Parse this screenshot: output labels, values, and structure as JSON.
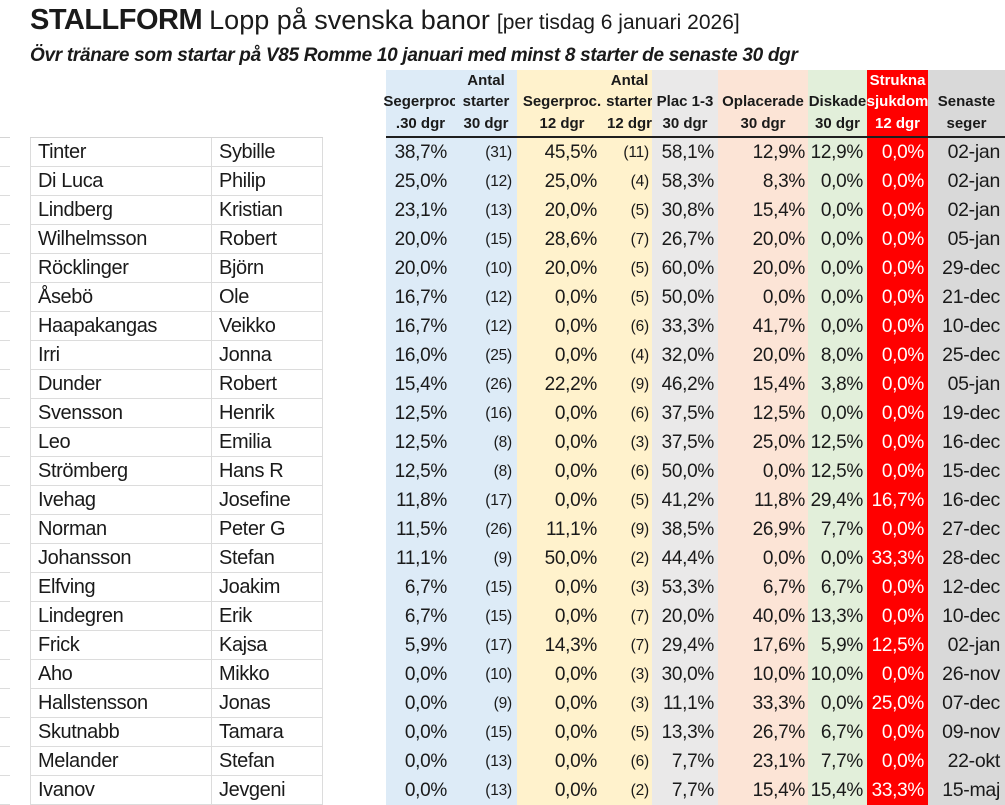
{
  "header": {
    "brand": "STALLFORM",
    "title_rest": "Lopp på svenska banor",
    "date_note": "[per tisdag 6 januari 2026]",
    "subtitle": "Övr tränare som startar på V85 Romme 10 januari med minst 8 starter de senaste 30 dgr"
  },
  "colors": {
    "blue_fill": "#DDEBF7",
    "yellow_fill": "#FFF2CC",
    "lightgray_fill": "#EAE9E9",
    "peach_fill": "#FCE4D6",
    "green_fill": "#E2EFDA",
    "red_fill": "#FF0000",
    "gray_fill": "#D9D9D9",
    "text": "#1a1a1a",
    "text_on_red": "#ffffff"
  },
  "chart_data": {
    "type": "table",
    "title": "STALLFORM Lopp på svenska banor [per tisdag 6 januari 2026]",
    "subtitle": "Övr tränare som startar på V85 Romme 10 januari med minst 8 starter de senaste 30 dgr",
    "column_headers": [
      {
        "key": "segerproc-30",
        "lines": [
          "Segerproc",
          ".30 dgr"
        ]
      },
      {
        "key": "antal-starter-30",
        "lines": [
          "Antal",
          "starter",
          "30 dgr"
        ]
      },
      {
        "key": "segerproc-12",
        "lines": [
          "Segerproc.",
          "12 dgr"
        ]
      },
      {
        "key": "antal-starter-12",
        "lines": [
          "Antal",
          "starter",
          "12 dgr"
        ]
      },
      {
        "key": "plac-1-3-30",
        "lines": [
          "Plac 1-3",
          "30 dgr"
        ]
      },
      {
        "key": "oplacerade-30",
        "lines": [
          "Oplacerade",
          "30 dgr"
        ]
      },
      {
        "key": "diskade-30",
        "lines": [
          "Diskade",
          "30 dgr"
        ]
      },
      {
        "key": "strukna-sjukdom-12",
        "lines": [
          "Strukna",
          "sjukdom",
          "12 dgr"
        ]
      },
      {
        "key": "senaste-seger",
        "lines": [
          "Senaste",
          "seger"
        ]
      }
    ],
    "rows": [
      [
        "Tinter",
        "Sybille",
        "38,7%",
        "(31)",
        "45,5%",
        "(11)",
        "58,1%",
        "12,9%",
        "12,9%",
        "0,0%",
        "02-jan"
      ],
      [
        "Di Luca",
        "Philip",
        "25,0%",
        "(12)",
        "25,0%",
        "(4)",
        "58,3%",
        "8,3%",
        "0,0%",
        "0,0%",
        "02-jan"
      ],
      [
        "Lindberg",
        "Kristian",
        "23,1%",
        "(13)",
        "20,0%",
        "(5)",
        "30,8%",
        "15,4%",
        "0,0%",
        "0,0%",
        "02-jan"
      ],
      [
        "Wilhelmsson",
        "Robert",
        "20,0%",
        "(15)",
        "28,6%",
        "(7)",
        "26,7%",
        "20,0%",
        "0,0%",
        "0,0%",
        "05-jan"
      ],
      [
        "Röcklinger",
        "Björn",
        "20,0%",
        "(10)",
        "20,0%",
        "(5)",
        "60,0%",
        "20,0%",
        "0,0%",
        "0,0%",
        "29-dec"
      ],
      [
        "Åsebö",
        "Ole",
        "16,7%",
        "(12)",
        "0,0%",
        "(5)",
        "50,0%",
        "0,0%",
        "0,0%",
        "0,0%",
        "21-dec"
      ],
      [
        "Haapakangas",
        "Veikko",
        "16,7%",
        "(12)",
        "0,0%",
        "(6)",
        "33,3%",
        "41,7%",
        "0,0%",
        "0,0%",
        "10-dec"
      ],
      [
        "Irri",
        "Jonna",
        "16,0%",
        "(25)",
        "0,0%",
        "(4)",
        "32,0%",
        "20,0%",
        "8,0%",
        "0,0%",
        "25-dec"
      ],
      [
        "Dunder",
        "Robert",
        "15,4%",
        "(26)",
        "22,2%",
        "(9)",
        "46,2%",
        "15,4%",
        "3,8%",
        "0,0%",
        "05-jan"
      ],
      [
        "Svensson",
        "Henrik",
        "12,5%",
        "(16)",
        "0,0%",
        "(6)",
        "37,5%",
        "12,5%",
        "0,0%",
        "0,0%",
        "19-dec"
      ],
      [
        "Leo",
        "Emilia",
        "12,5%",
        "(8)",
        "0,0%",
        "(3)",
        "37,5%",
        "25,0%",
        "12,5%",
        "0,0%",
        "16-dec"
      ],
      [
        "Strömberg",
        "Hans R",
        "12,5%",
        "(8)",
        "0,0%",
        "(6)",
        "50,0%",
        "0,0%",
        "12,5%",
        "0,0%",
        "15-dec"
      ],
      [
        "Ivehag",
        "Josefine",
        "11,8%",
        "(17)",
        "0,0%",
        "(5)",
        "41,2%",
        "11,8%",
        "29,4%",
        "16,7%",
        "16-dec"
      ],
      [
        "Norman",
        "Peter G",
        "11,5%",
        "(26)",
        "11,1%",
        "(9)",
        "38,5%",
        "26,9%",
        "7,7%",
        "0,0%",
        "27-dec"
      ],
      [
        "Johansson",
        "Stefan",
        "11,1%",
        "(9)",
        "50,0%",
        "(2)",
        "44,4%",
        "0,0%",
        "0,0%",
        "33,3%",
        "28-dec"
      ],
      [
        "Elfving",
        "Joakim",
        "6,7%",
        "(15)",
        "0,0%",
        "(3)",
        "53,3%",
        "6,7%",
        "6,7%",
        "0,0%",
        "12-dec"
      ],
      [
        "Lindegren",
        "Erik",
        "6,7%",
        "(15)",
        "0,0%",
        "(7)",
        "20,0%",
        "40,0%",
        "13,3%",
        "0,0%",
        "10-dec"
      ],
      [
        "Frick",
        "Kajsa",
        "5,9%",
        "(17)",
        "14,3%",
        "(7)",
        "29,4%",
        "17,6%",
        "5,9%",
        "12,5%",
        "02-jan"
      ],
      [
        "Aho",
        "Mikko",
        "0,0%",
        "(10)",
        "0,0%",
        "(3)",
        "30,0%",
        "10,0%",
        "10,0%",
        "0,0%",
        "26-nov"
      ],
      [
        "Hallstensson",
        "Jonas",
        "0,0%",
        "(9)",
        "0,0%",
        "(3)",
        "11,1%",
        "33,3%",
        "0,0%",
        "25,0%",
        "07-dec"
      ],
      [
        "Skutnabb",
        "Tamara",
        "0,0%",
        "(15)",
        "0,0%",
        "(5)",
        "13,3%",
        "26,7%",
        "6,7%",
        "0,0%",
        "09-nov"
      ],
      [
        "Melander",
        "Stefan",
        "0,0%",
        "(13)",
        "0,0%",
        "(6)",
        "7,7%",
        "23,1%",
        "7,7%",
        "0,0%",
        "22-okt"
      ],
      [
        "Ivanov",
        "Jevgeni",
        "0,0%",
        "(13)",
        "0,0%",
        "(2)",
        "7,7%",
        "15,4%",
        "15,4%",
        "33,3%",
        "15-maj"
      ]
    ]
  }
}
